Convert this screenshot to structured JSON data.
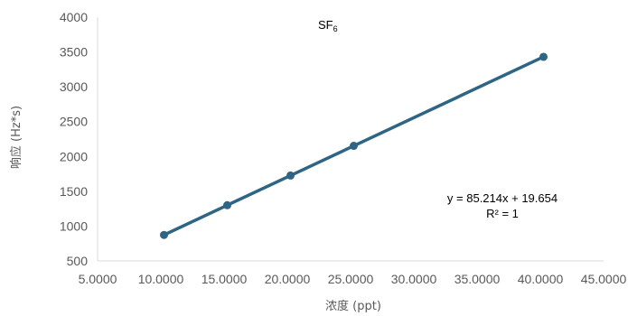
{
  "chart_data": {
    "type": "line",
    "title": {
      "main": "SF",
      "subscript": "6"
    },
    "xlabel": "浓度 (ppt)",
    "ylabel": "响应 (Hz*s)",
    "xlim": [
      5,
      45
    ],
    "ylim": [
      500,
      4000
    ],
    "x_ticks": [
      5,
      10,
      15,
      20,
      25,
      30,
      35,
      40,
      45
    ],
    "x_tick_labels": [
      "5.0000",
      "10.0000",
      "15.0000",
      "20.0000",
      "25.0000",
      "30.0000",
      "35.0000",
      "40.0000",
      "45.0000"
    ],
    "y_ticks": [
      500,
      1000,
      1500,
      2000,
      2500,
      3000,
      3500,
      4000
    ],
    "y_tick_labels": [
      "500",
      "1000",
      "1500",
      "2000",
      "2500",
      "3000",
      "3500",
      "4000"
    ],
    "grid": false,
    "legend": "none",
    "series": [
      {
        "x": [
          10.25,
          15.25,
          20.25,
          25.25,
          40.25
        ],
        "y": [
          873,
          1300,
          1726,
          2152,
          3430
        ],
        "color": "#2e6484",
        "marker": "circle"
      }
    ],
    "annotations": [
      "y = 85.214x + 19.654",
      "R² = 1"
    ]
  }
}
